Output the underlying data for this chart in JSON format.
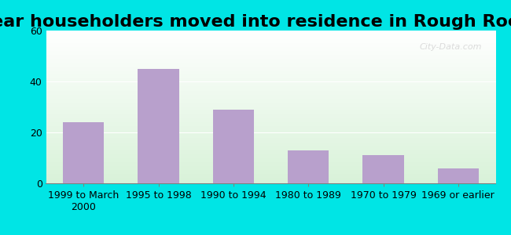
{
  "title": "Year householders moved into residence in Rough Rock",
  "categories": [
    "1999 to March\n2000",
    "1995 to 1998",
    "1990 to 1994",
    "1980 to 1989",
    "1970 to 1979",
    "1969 or earlier"
  ],
  "values": [
    24,
    45,
    29,
    13,
    11,
    6
  ],
  "bar_color": "#b8a0cc",
  "ylim": [
    0,
    60
  ],
  "yticks": [
    0,
    20,
    40,
    60
  ],
  "outer_bg": "#00e5e5",
  "plot_bg_top": "#ffffff",
  "plot_bg_bottom": "#d4edda",
  "watermark": "City-Data.com",
  "title_fontsize": 16,
  "tick_fontsize": 9
}
